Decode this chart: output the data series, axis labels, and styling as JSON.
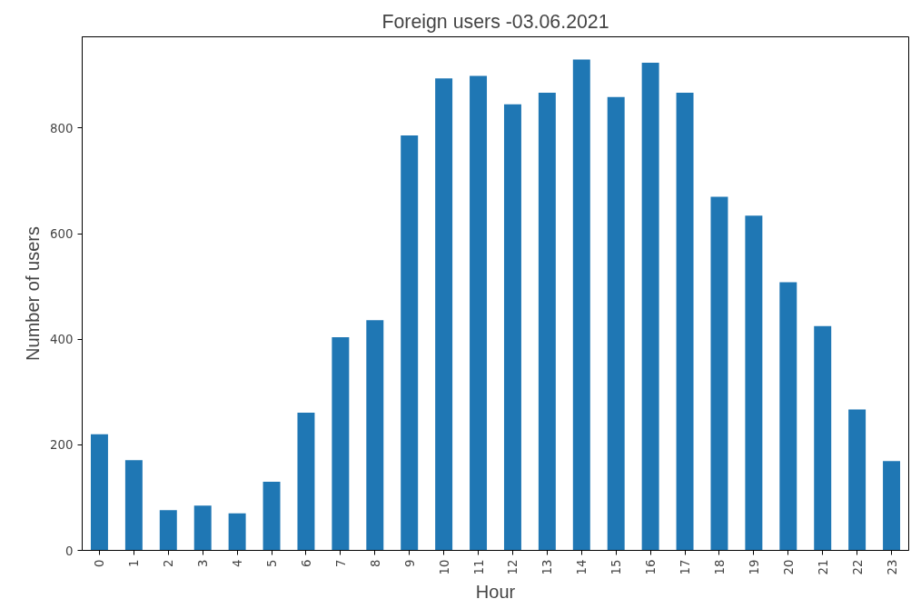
{
  "chart_data": {
    "type": "bar",
    "title": "Foreign users -03.06.2021",
    "xlabel": "Hour",
    "ylabel": "Number of users",
    "categories": [
      "0",
      "1",
      "2",
      "3",
      "4",
      "5",
      "6",
      "7",
      "8",
      "9",
      "10",
      "11",
      "12",
      "13",
      "14",
      "15",
      "16",
      "17",
      "18",
      "19",
      "20",
      "21",
      "22",
      "23"
    ],
    "values": [
      220,
      171,
      76,
      85,
      70,
      130,
      261,
      404,
      436,
      786,
      894,
      899,
      845,
      867,
      930,
      859,
      924,
      867,
      670,
      634,
      508,
      425,
      267,
      169
    ],
    "color": "#1f77b4",
    "ylim": [
      0,
      973
    ],
    "yticks": [
      0,
      200,
      400,
      600,
      800
    ],
    "grid": false
  }
}
